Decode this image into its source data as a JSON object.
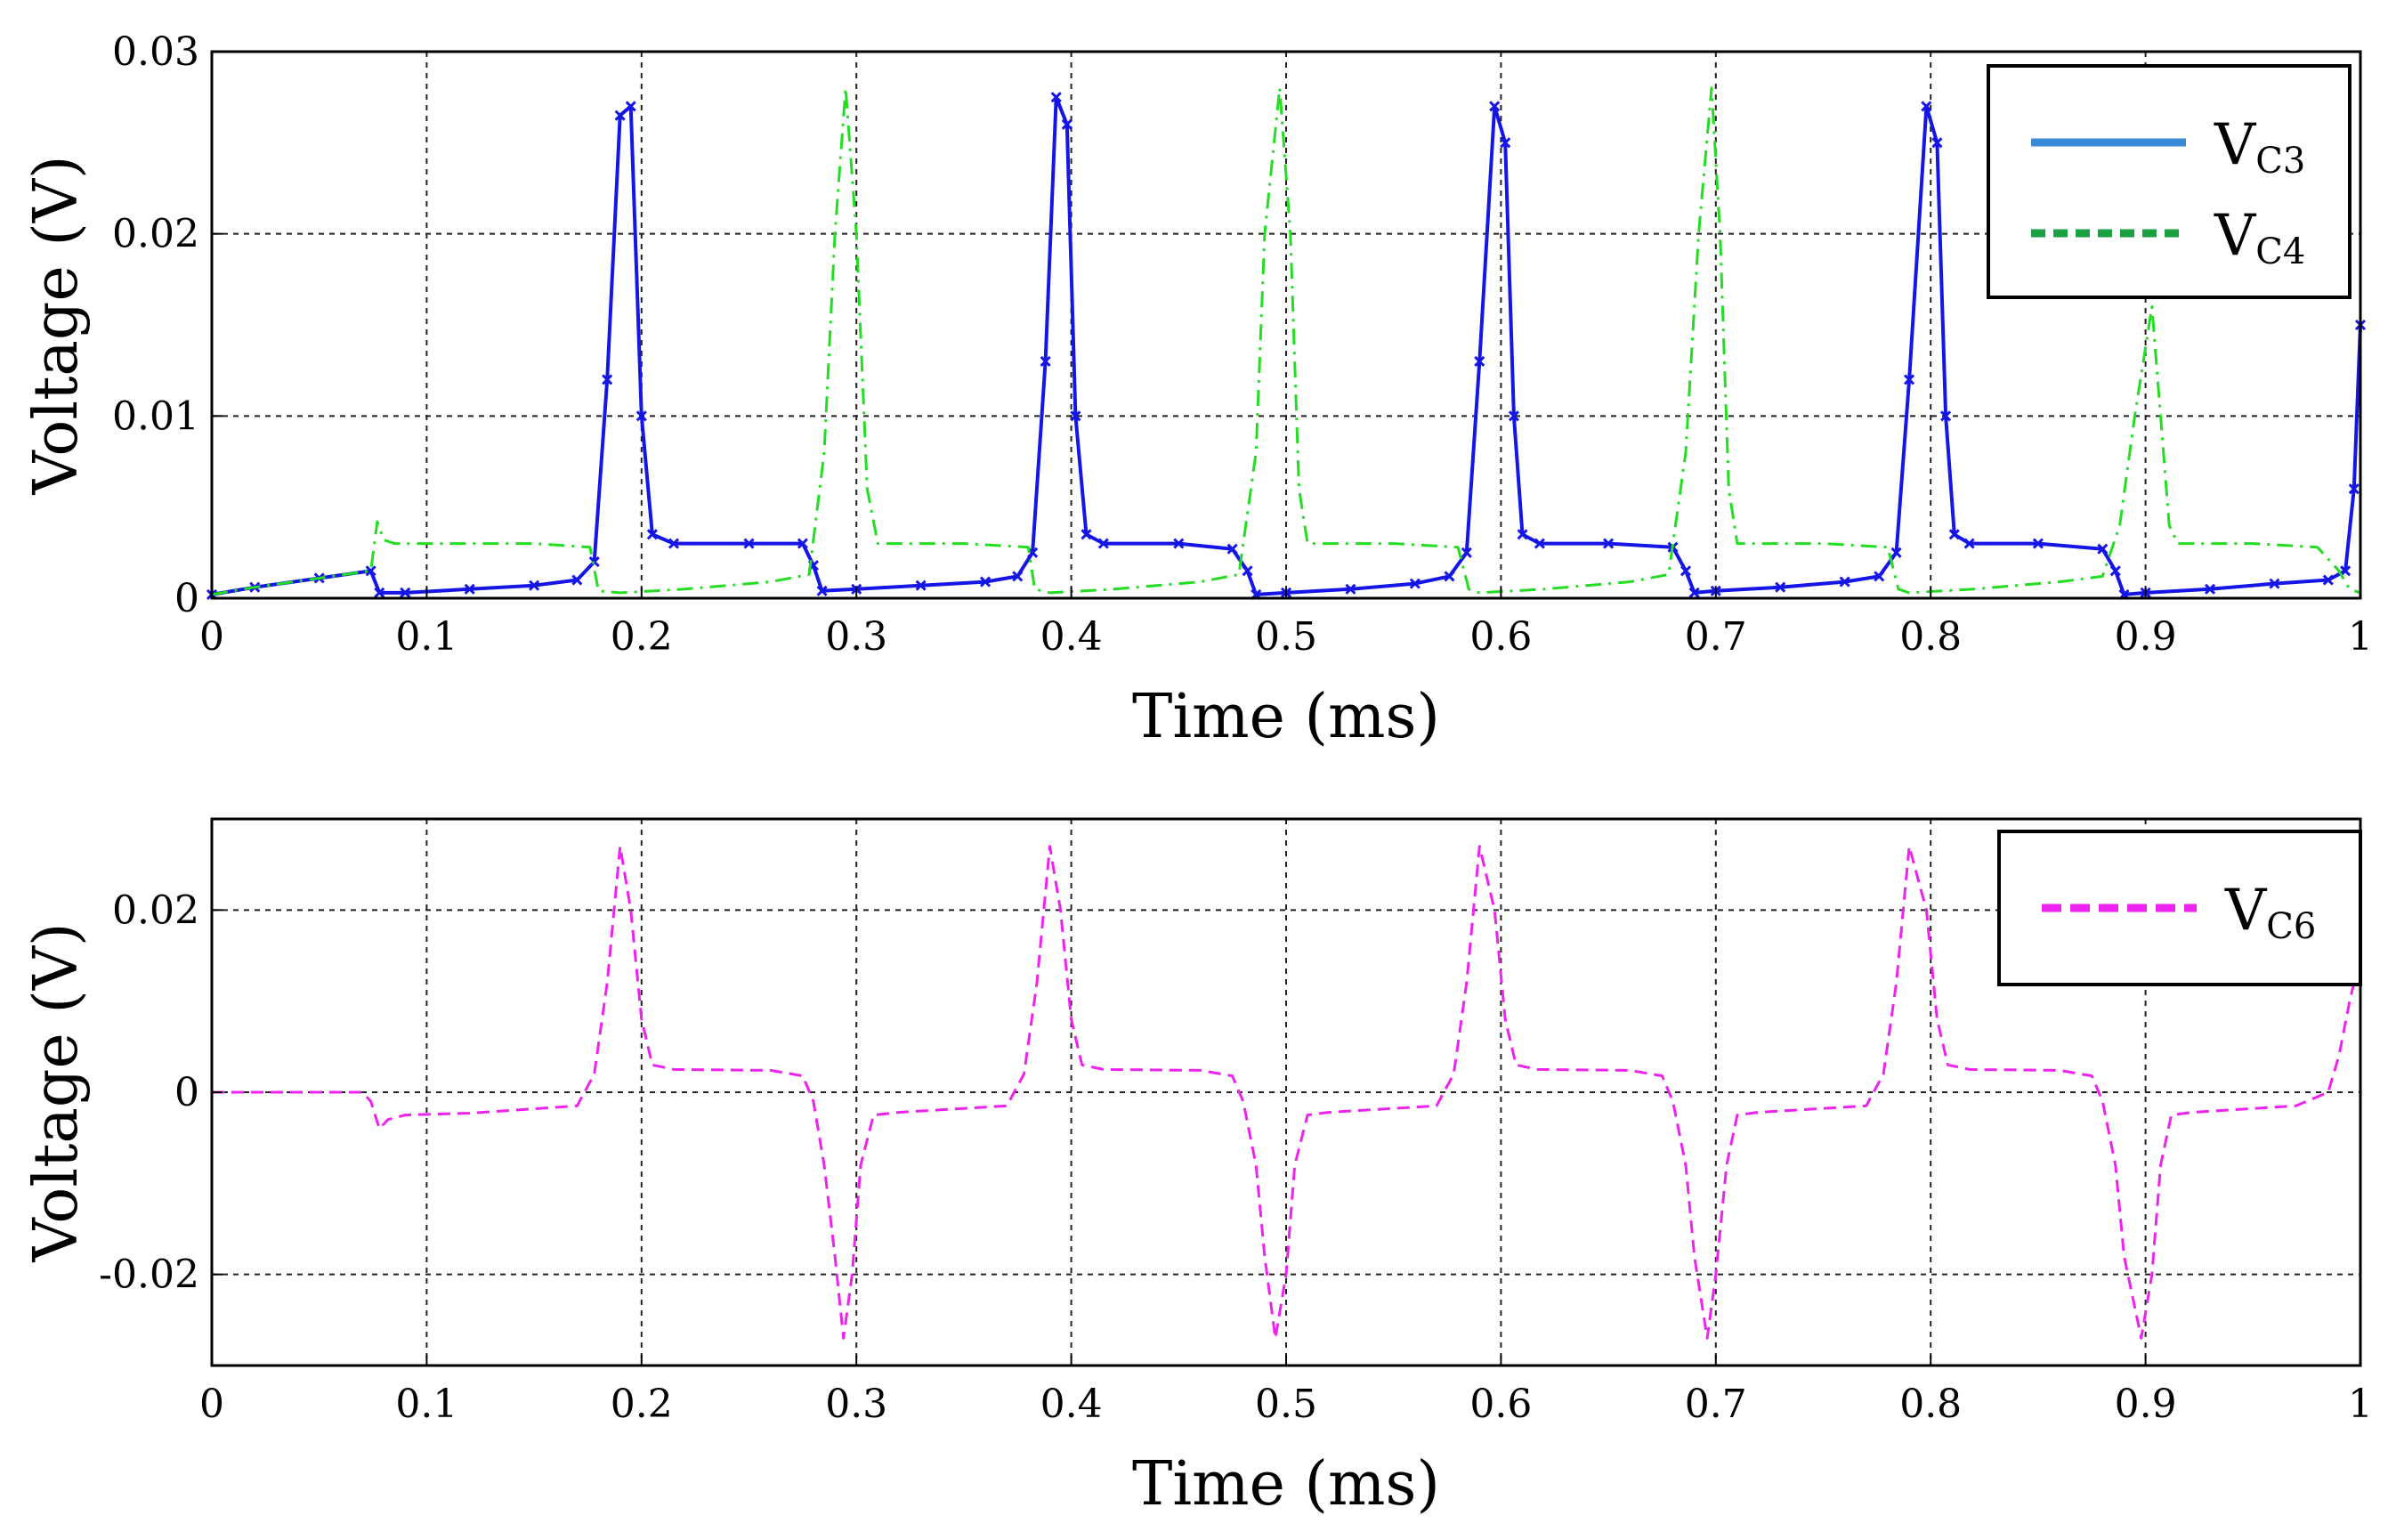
{
  "chart_data": [
    {
      "type": "line",
      "title": "",
      "xlabel": "Time (ms)",
      "ylabel": "Voltage (V)",
      "xlim": [
        0,
        1
      ],
      "ylim": [
        0,
        0.03
      ],
      "grid": true,
      "xticks": [
        0,
        0.1,
        0.2,
        0.3,
        0.4,
        0.5,
        0.6,
        0.7,
        0.8,
        0.9,
        1
      ],
      "xtick_labels": [
        "0",
        "0.1",
        "0.2",
        "0.3",
        "0.4",
        "0.5",
        "0.6",
        "0.7",
        "0.8",
        "0.9",
        "1"
      ],
      "yticks": [
        0,
        0.01,
        0.02,
        0.03
      ],
      "ytick_labels": [
        "0",
        "0.01",
        "0.02",
        "0.03"
      ],
      "legend_position": "top-right",
      "series": [
        {
          "name": "VC3",
          "legend_main": "V",
          "legend_sub": "C3",
          "color": "#1515e6",
          "legend_color": "#3a8ad9",
          "style": "solid-marked",
          "x": [
            0,
            0.02,
            0.05,
            0.074,
            0.078,
            0.09,
            0.12,
            0.15,
            0.17,
            0.178,
            0.184,
            0.19,
            0.195,
            0.2,
            0.205,
            0.215,
            0.25,
            0.275,
            0.28,
            0.284,
            0.3,
            0.33,
            0.36,
            0.375,
            0.382,
            0.388,
            0.393,
            0.398,
            0.402,
            0.407,
            0.415,
            0.45,
            0.475,
            0.482,
            0.486,
            0.5,
            0.53,
            0.56,
            0.576,
            0.584,
            0.59,
            0.597,
            0.602,
            0.606,
            0.61,
            0.618,
            0.65,
            0.68,
            0.686,
            0.69,
            0.7,
            0.73,
            0.76,
            0.776,
            0.784,
            0.79,
            0.798,
            0.803,
            0.807,
            0.811,
            0.818,
            0.85,
            0.88,
            0.886,
            0.89,
            0.9,
            0.93,
            0.96,
            0.985,
            0.993,
            0.997,
            1.0
          ],
          "y": [
            0.0002,
            0.0006,
            0.0011,
            0.0015,
            0.0003,
            0.0003,
            0.0005,
            0.0007,
            0.001,
            0.002,
            0.012,
            0.0265,
            0.027,
            0.01,
            0.0035,
            0.003,
            0.003,
            0.003,
            0.0018,
            0.0004,
            0.0005,
            0.0007,
            0.0009,
            0.0012,
            0.0025,
            0.013,
            0.0275,
            0.026,
            0.01,
            0.0035,
            0.003,
            0.003,
            0.0027,
            0.0015,
            0.0002,
            0.0003,
            0.0005,
            0.0008,
            0.0012,
            0.0025,
            0.013,
            0.027,
            0.025,
            0.01,
            0.0035,
            0.003,
            0.003,
            0.0028,
            0.0015,
            0.0003,
            0.0004,
            0.0006,
            0.0009,
            0.0012,
            0.0025,
            0.012,
            0.027,
            0.025,
            0.01,
            0.0035,
            0.003,
            0.003,
            0.0027,
            0.0015,
            0.0002,
            0.0003,
            0.0005,
            0.0008,
            0.001,
            0.0015,
            0.006,
            0.015
          ]
        },
        {
          "name": "VC4",
          "legend_main": "V",
          "legend_sub": "C4",
          "color": "#22dd22",
          "legend_color": "#1aa040",
          "style": "dash-dot",
          "x": [
            0,
            0.02,
            0.05,
            0.074,
            0.077,
            0.08,
            0.085,
            0.1,
            0.15,
            0.176,
            0.18,
            0.19,
            0.22,
            0.26,
            0.278,
            0.285,
            0.29,
            0.295,
            0.3,
            0.305,
            0.31,
            0.35,
            0.38,
            0.383,
            0.39,
            0.42,
            0.46,
            0.478,
            0.486,
            0.49,
            0.497,
            0.502,
            0.506,
            0.51,
            0.55,
            0.58,
            0.585,
            0.59,
            0.62,
            0.66,
            0.678,
            0.686,
            0.692,
            0.698,
            0.702,
            0.706,
            0.71,
            0.75,
            0.78,
            0.785,
            0.79,
            0.82,
            0.86,
            0.88,
            0.888,
            0.895,
            0.903,
            0.907,
            0.911,
            0.915,
            0.95,
            0.98,
            0.99,
            0.995,
            1.0
          ],
          "y": [
            0.0002,
            0.0006,
            0.0011,
            0.0015,
            0.0042,
            0.0032,
            0.003,
            0.003,
            0.003,
            0.0028,
            0.0004,
            0.0003,
            0.0005,
            0.0009,
            0.0013,
            0.008,
            0.02,
            0.028,
            0.02,
            0.006,
            0.003,
            0.003,
            0.0028,
            0.0005,
            0.0003,
            0.0005,
            0.0009,
            0.0013,
            0.008,
            0.02,
            0.028,
            0.02,
            0.006,
            0.003,
            0.003,
            0.0028,
            0.0005,
            0.0003,
            0.0005,
            0.0009,
            0.0013,
            0.008,
            0.02,
            0.028,
            0.02,
            0.006,
            0.003,
            0.003,
            0.0028,
            0.0005,
            0.0003,
            0.0005,
            0.0009,
            0.0012,
            0.004,
            0.01,
            0.016,
            0.01,
            0.004,
            0.003,
            0.003,
            0.0028,
            0.0015,
            0.0005,
            0.0003
          ]
        }
      ]
    },
    {
      "type": "line",
      "title": "",
      "xlabel": "Time (ms)",
      "ylabel": "Voltage (V)",
      "xlim": [
        0,
        1
      ],
      "ylim": [
        -0.03,
        0.03
      ],
      "grid": true,
      "xticks": [
        0,
        0.1,
        0.2,
        0.3,
        0.4,
        0.5,
        0.6,
        0.7,
        0.8,
        0.9,
        1
      ],
      "xtick_labels": [
        "0",
        "0.1",
        "0.2",
        "0.3",
        "0.4",
        "0.5",
        "0.6",
        "0.7",
        "0.8",
        "0.9",
        "1"
      ],
      "yticks": [
        -0.02,
        0,
        0.02
      ],
      "ytick_labels": [
        "-0.02",
        "0",
        "0.02"
      ],
      "legend_position": "top-right",
      "series": [
        {
          "name": "VC6",
          "legend_main": "V",
          "legend_sub": "C6",
          "color": "#ee22ee",
          "legend_color": "#ee22ee",
          "style": "dashed",
          "x": [
            0,
            0.07,
            0.074,
            0.078,
            0.082,
            0.09,
            0.12,
            0.17,
            0.178,
            0.184,
            0.19,
            0.195,
            0.2,
            0.205,
            0.215,
            0.26,
            0.275,
            0.28,
            0.285,
            0.29,
            0.294,
            0.298,
            0.302,
            0.308,
            0.32,
            0.37,
            0.378,
            0.384,
            0.39,
            0.395,
            0.4,
            0.405,
            0.415,
            0.46,
            0.475,
            0.48,
            0.486,
            0.49,
            0.495,
            0.5,
            0.504,
            0.51,
            0.52,
            0.57,
            0.578,
            0.584,
            0.59,
            0.597,
            0.602,
            0.607,
            0.617,
            0.66,
            0.675,
            0.68,
            0.686,
            0.69,
            0.696,
            0.7,
            0.705,
            0.71,
            0.72,
            0.77,
            0.778,
            0.784,
            0.79,
            0.798,
            0.803,
            0.808,
            0.818,
            0.86,
            0.875,
            0.88,
            0.886,
            0.89,
            0.898,
            0.903,
            0.907,
            0.912,
            0.922,
            0.97,
            0.98,
            0.985,
            0.99,
            0.995,
            1.0
          ],
          "y": [
            0,
            0,
            -0.001,
            -0.004,
            -0.003,
            -0.0025,
            -0.0023,
            -0.0015,
            0.002,
            0.012,
            0.027,
            0.02,
            0.008,
            0.003,
            0.0025,
            0.0024,
            0.0018,
            -0.001,
            -0.008,
            -0.018,
            -0.027,
            -0.02,
            -0.008,
            -0.0025,
            -0.0022,
            -0.0015,
            0.002,
            0.012,
            0.027,
            0.02,
            0.008,
            0.003,
            0.0025,
            0.0024,
            0.0018,
            -0.001,
            -0.008,
            -0.018,
            -0.027,
            -0.02,
            -0.008,
            -0.0025,
            -0.0022,
            -0.0015,
            0.002,
            0.012,
            0.027,
            0.02,
            0.008,
            0.003,
            0.0025,
            0.0024,
            0.0018,
            -0.001,
            -0.008,
            -0.018,
            -0.027,
            -0.02,
            -0.008,
            -0.0025,
            -0.0022,
            -0.0015,
            0.002,
            0.012,
            0.027,
            0.02,
            0.008,
            0.003,
            0.0025,
            0.0024,
            0.0018,
            -0.001,
            -0.008,
            -0.018,
            -0.027,
            -0.02,
            -0.008,
            -0.0025,
            -0.0022,
            -0.0015,
            -0.0005,
            0,
            0.004,
            0.01,
            0.015
          ]
        }
      ]
    }
  ]
}
